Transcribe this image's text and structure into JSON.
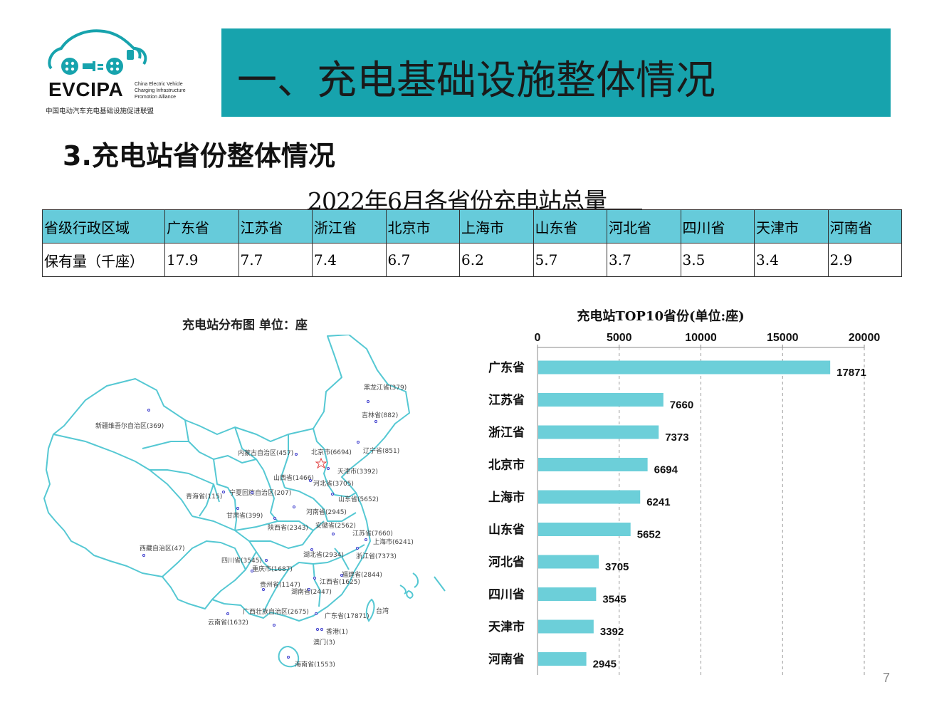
{
  "logo": {
    "name": "EVCIPA",
    "english": [
      "China Electric Vehicle",
      "Charging Infrastructure",
      "Promotion Alliance"
    ],
    "chinese": "中国电动汽车充电基础设施促进联盟"
  },
  "banner": {
    "title": "一、充电基础设施整体情况",
    "color": "#17a3ad"
  },
  "section_title": "3.充电站省份整体情况",
  "table": {
    "title": "2022年6月各省份充电站总量",
    "row_headers": [
      "省级行政区域",
      "保有量（千座）"
    ],
    "provinces": [
      "广东省",
      "江苏省",
      "浙江省",
      "北京市",
      "上海市",
      "山东省",
      "河北省",
      "四川省",
      "天津市",
      "河南省"
    ],
    "values": [
      "17.9",
      "7.7",
      "7.4",
      "6.7",
      "6.2",
      "5.7",
      "3.7",
      "3.5",
      "3.4",
      "2.9"
    ],
    "header_color": "#66cbda"
  },
  "map": {
    "title": "充电站分布图  单位：座",
    "labels": [
      "黑龙江省(379)",
      "吉林省(882)",
      "辽宁省(851)",
      "新疆维吾尔自治区(369)",
      "内蒙古自治区(457)",
      "北京市(6694)",
      "天津市(3392)",
      "山西省(1466)",
      "河北省(3705)",
      "山东省(5652)",
      "青海省(115)",
      "宁夏回族自治区(207)",
      "甘肃省(399)",
      "河南省(2945)",
      "陕西省(2343)",
      "安徽省(2562)",
      "江苏省(7660)",
      "上海市(6241)",
      "西藏自治区(47)",
      "湖北省(2934)",
      "浙江省(7373)",
      "四川省(3545)",
      "重庆市(1687)",
      "福建省(2844)",
      "贵州省(1147)",
      "江西省(1625)",
      "湖南省(2447)",
      "广西壮族自治区(2675)",
      "广东省(17871)",
      "台湾",
      "云南省(1632)",
      "香港(1)",
      "澳门(3)",
      "海南省(1553)"
    ],
    "outline_color": "#55c8d3"
  },
  "chart_data": {
    "type": "bar",
    "orientation": "horizontal",
    "title": "充电站TOP10省份(单位:座)",
    "categories": [
      "广东省",
      "江苏省",
      "浙江省",
      "北京市",
      "上海市",
      "山东省",
      "河北省",
      "四川省",
      "天津市",
      "河南省"
    ],
    "values": [
      17871,
      7660,
      7373,
      6694,
      6241,
      5652,
      3705,
      3545,
      3392,
      2945
    ],
    "xlim": [
      0,
      20000
    ],
    "xticks": [
      "0",
      "5000",
      "10000",
      "15000",
      "20000"
    ],
    "axis_position": "top",
    "grid": "vertical dashed",
    "bar_color": "#6ccfd9"
  },
  "page_number": "7"
}
